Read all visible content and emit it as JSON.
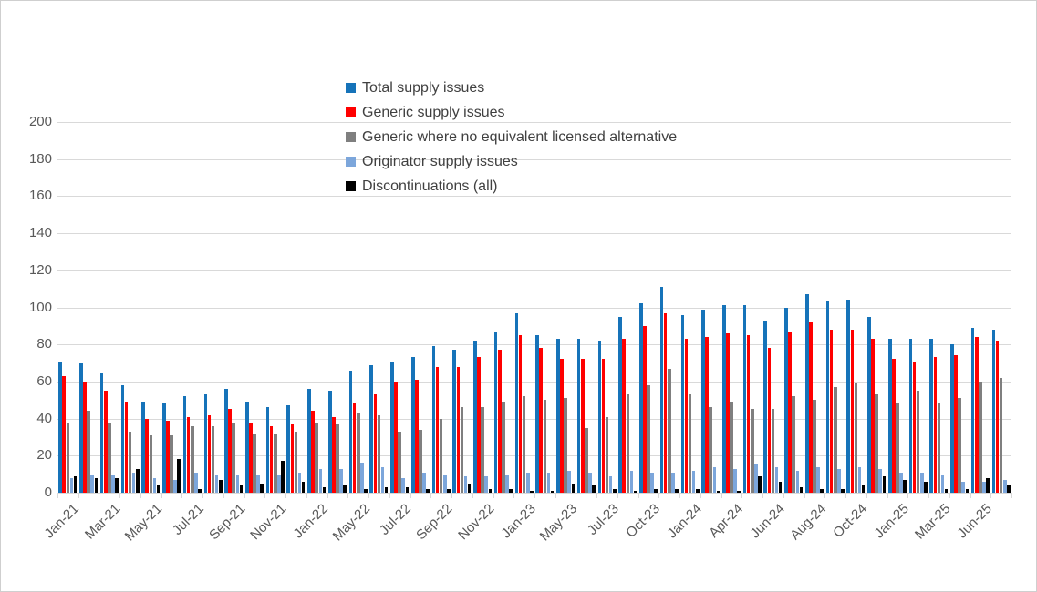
{
  "chart_data": {
    "type": "bar",
    "title": "",
    "xlabel": "",
    "ylabel": "",
    "ylim": [
      0,
      200
    ],
    "ytick_step": 20,
    "grid": true,
    "legend_position": "top-center-left",
    "categories": [
      "Jan-21",
      "",
      "Mar-21",
      "",
      "May-21",
      "",
      "Jul-21",
      "",
      "Sep-21",
      "",
      "Nov-21",
      "",
      "Jan-22",
      "",
      "May-22",
      "",
      "Jul-22",
      "",
      "Sep-22",
      "",
      "Nov-22",
      "",
      "Jan-23",
      "",
      "May-23",
      "",
      "Jul-23",
      "",
      "Oct-23",
      "",
      "Jan-24",
      "",
      "Apr-24",
      "",
      "Jun-24",
      "",
      "Aug-24",
      "",
      "Oct-24",
      "",
      "Jan-25",
      "",
      "Mar-25",
      "",
      "Jun-25",
      ""
    ],
    "series": [
      {
        "name": "Total supply issues",
        "color": "#1673b9",
        "values": [
          71,
          70,
          65,
          58,
          49,
          48,
          52,
          53,
          56,
          49,
          46,
          47,
          56,
          55,
          66,
          69,
          71,
          73,
          79,
          77,
          82,
          87,
          97,
          85,
          83,
          83,
          82,
          95,
          102,
          111,
          96,
          99,
          101,
          101,
          93,
          100,
          107,
          103,
          104,
          95,
          83,
          83,
          83,
          80,
          89,
          88
        ]
      },
      {
        "name": "Generic supply issues",
        "color": "#ff0000",
        "values": [
          63,
          60,
          55,
          49,
          40,
          39,
          41,
          42,
          45,
          38,
          36,
          37,
          44,
          41,
          48,
          53,
          60,
          61,
          68,
          68,
          73,
          77,
          85,
          78,
          72,
          72,
          72,
          83,
          90,
          97,
          83,
          84,
          86,
          85,
          78,
          87,
          92,
          88,
          88,
          83,
          72,
          71,
          73,
          74,
          84,
          82
        ]
      },
      {
        "name": "Generic where no equivalent licensed alternative",
        "color": "#7f7f7f",
        "values": [
          38,
          44,
          38,
          33,
          31,
          31,
          36,
          36,
          38,
          32,
          32,
          33,
          38,
          37,
          43,
          42,
          33,
          34,
          40,
          46,
          46,
          49,
          52,
          50,
          51,
          35,
          41,
          53,
          58,
          67,
          53,
          46,
          49,
          45,
          45,
          52,
          50,
          57,
          59,
          53,
          48,
          55,
          48,
          51,
          60,
          62
        ]
      },
      {
        "name": "Originator supply issues",
        "color": "#7ca6db",
        "values": [
          8,
          10,
          10,
          11,
          8,
          7,
          11,
          10,
          10,
          10,
          10,
          11,
          13,
          13,
          16,
          14,
          8,
          11,
          10,
          9,
          9,
          10,
          11,
          11,
          12,
          11,
          9,
          12,
          11,
          11,
          12,
          14,
          13,
          15,
          14,
          12,
          14,
          13,
          14,
          13,
          11,
          11,
          10,
          6,
          6,
          7
        ]
      },
      {
        "name": "Discontinuations (all)",
        "color": "#000000",
        "values": [
          9,
          8,
          8,
          13,
          4,
          18,
          2,
          7,
          4,
          5,
          17,
          6,
          3,
          4,
          2,
          3,
          3,
          2,
          2,
          5,
          2,
          2,
          1,
          1,
          5,
          4,
          2,
          1,
          2,
          2,
          2,
          1,
          1,
          9,
          6,
          3,
          2,
          2,
          4,
          9,
          7,
          6,
          2,
          2,
          8,
          4
        ]
      }
    ],
    "y_tick_labels": [
      "0",
      "20",
      "40",
      "60",
      "80",
      "100",
      "120",
      "140",
      "160",
      "180",
      "200"
    ],
    "colors": {
      "gridline": "#d9d9d9",
      "axis_line": "#d9d9d9",
      "axis_text": "#595959",
      "legend_text": "#404040",
      "background": "#ffffff"
    }
  }
}
